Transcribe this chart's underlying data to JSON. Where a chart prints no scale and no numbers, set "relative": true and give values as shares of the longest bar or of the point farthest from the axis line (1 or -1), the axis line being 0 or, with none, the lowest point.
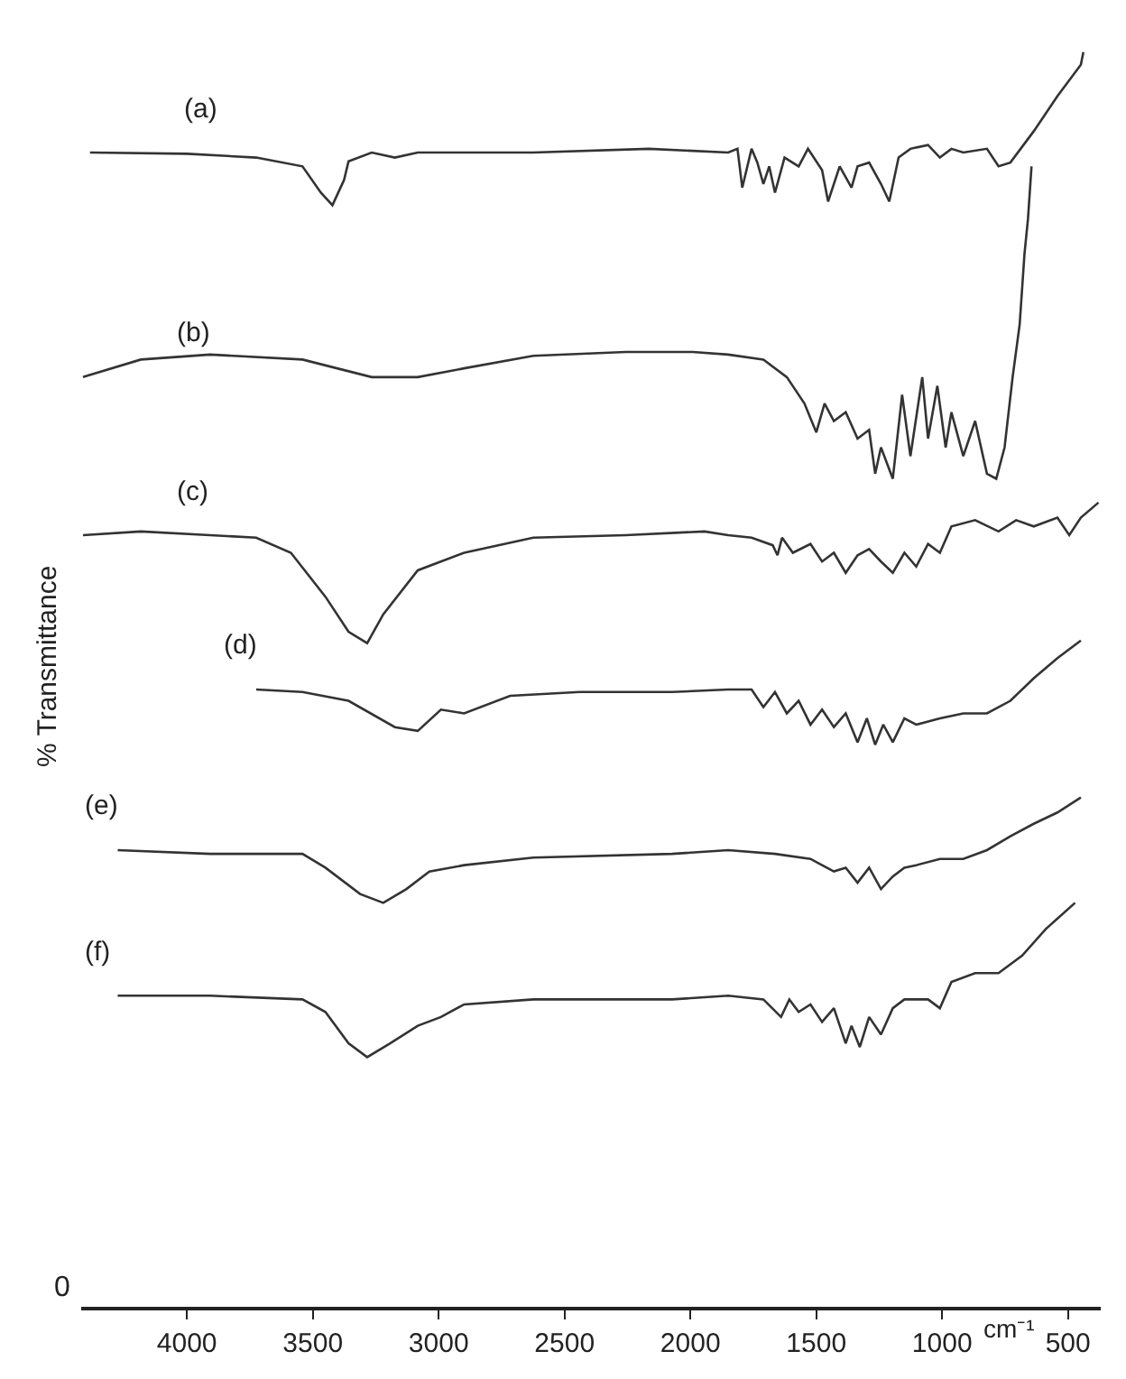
{
  "chart_data": {
    "type": "line",
    "relative": true,
    "ylabel": "% Transmittance",
    "xlabel": "cm⁻¹",
    "xlim": [
      4420,
      370
    ],
    "xticks": [
      4000,
      3500,
      3000,
      2500,
      2000,
      1500,
      1000,
      500
    ],
    "legend": false,
    "marker": "none",
    "line_style": "solid",
    "annotations": [
      "0"
    ],
    "series": [
      {
        "name": "(a)",
        "color": "#333333",
        "x": [
          4385,
          4000,
          3725,
          3541,
          3468,
          3422,
          3376,
          3358,
          3266,
          3174,
          3083,
          2945,
          2624,
          2165,
          1850,
          1813,
          1794,
          1757,
          1734,
          1710,
          1687,
          1664,
          1626,
          1570,
          1533,
          1477,
          1453,
          1407,
          1360,
          1336,
          1290,
          1243,
          1210,
          1173,
          1126,
          1056,
          1009,
          963,
          916,
          822,
          776,
          729,
          636,
          542,
          449,
          439
        ],
        "values": [
          0.92,
          0.919,
          0.916,
          0.909,
          0.888,
          0.878,
          0.898,
          0.913,
          0.92,
          0.916,
          0.92,
          0.92,
          0.92,
          0.923,
          0.92,
          0.923,
          0.892,
          0.923,
          0.912,
          0.895,
          0.909,
          0.888,
          0.916,
          0.909,
          0.923,
          0.906,
          0.881,
          0.909,
          0.892,
          0.909,
          0.912,
          0.895,
          0.881,
          0.916,
          0.923,
          0.926,
          0.916,
          0.923,
          0.92,
          0.923,
          0.909,
          0.912,
          0.937,
          0.965,
          0.99,
          1.0
        ]
      },
      {
        "name": "(b)",
        "color": "#333333",
        "x": [
          4413,
          4183,
          3908,
          3541,
          3266,
          3083,
          2899,
          2624,
          2257,
          1991,
          1850,
          1710,
          1617,
          1547,
          1500,
          1467,
          1430,
          1383,
          1336,
          1290,
          1266,
          1243,
          1196,
          1159,
          1126,
          1079,
          1056,
          1019,
          986,
          963,
          916,
          869,
          822,
          785,
          752,
          720,
          692,
          673,
          659,
          645
        ],
        "values": [
          0.741,
          0.755,
          0.759,
          0.755,
          0.741,
          0.741,
          0.748,
          0.758,
          0.761,
          0.761,
          0.759,
          0.755,
          0.741,
          0.72,
          0.697,
          0.72,
          0.706,
          0.713,
          0.692,
          0.699,
          0.664,
          0.685,
          0.66,
          0.727,
          0.678,
          0.741,
          0.692,
          0.734,
          0.685,
          0.713,
          0.678,
          0.706,
          0.664,
          0.66,
          0.685,
          0.741,
          0.783,
          0.839,
          0.867,
          0.909
        ]
      },
      {
        "name": "(c)",
        "color": "#333333",
        "x": [
          4413,
          4183,
          3908,
          3725,
          3587,
          3450,
          3358,
          3284,
          3220,
          3083,
          2899,
          2624,
          2257,
          1944,
          1850,
          1757,
          1673,
          1654,
          1636,
          1593,
          1523,
          1477,
          1430,
          1383,
          1336,
          1290,
          1243,
          1196,
          1150,
          1103,
          1056,
          1009,
          963,
          869,
          776,
          706,
          636,
          542,
          495,
          449,
          379
        ],
        "values": [
          0.615,
          0.618,
          0.615,
          0.613,
          0.601,
          0.566,
          0.538,
          0.529,
          0.552,
          0.587,
          0.601,
          0.613,
          0.615,
          0.618,
          0.615,
          0.613,
          0.607,
          0.599,
          0.613,
          0.601,
          0.608,
          0.594,
          0.601,
          0.585,
          0.599,
          0.604,
          0.594,
          0.585,
          0.601,
          0.59,
          0.608,
          0.601,
          0.622,
          0.627,
          0.618,
          0.627,
          0.622,
          0.629,
          0.615,
          0.629,
          0.641
        ]
      },
      {
        "name": "(d)",
        "color": "#333333",
        "x": [
          3725,
          3541,
          3358,
          3174,
          3083,
          2991,
          2899,
          2716,
          2440,
          2073,
          1850,
          1757,
          1710,
          1664,
          1617,
          1570,
          1523,
          1477,
          1430,
          1383,
          1336,
          1299,
          1266,
          1234,
          1196,
          1150,
          1103,
          1009,
          916,
          822,
          729,
          636,
          542,
          449
        ],
        "values": [
          0.492,
          0.49,
          0.483,
          0.462,
          0.459,
          0.476,
          0.473,
          0.487,
          0.49,
          0.49,
          0.492,
          0.492,
          0.478,
          0.49,
          0.473,
          0.483,
          0.464,
          0.476,
          0.462,
          0.473,
          0.45,
          0.469,
          0.448,
          0.464,
          0.45,
          0.469,
          0.464,
          0.469,
          0.473,
          0.473,
          0.483,
          0.501,
          0.517,
          0.531
        ]
      },
      {
        "name": "(e)",
        "color": "#333333",
        "x": [
          4275,
          3908,
          3541,
          3450,
          3312,
          3220,
          3128,
          3037,
          2899,
          2624,
          2073,
          1850,
          1664,
          1523,
          1477,
          1430,
          1383,
          1336,
          1290,
          1243,
          1196,
          1150,
          1103,
          1009,
          916,
          822,
          729,
          636,
          542,
          449
        ],
        "values": [
          0.364,
          0.361,
          0.361,
          0.35,
          0.329,
          0.322,
          0.333,
          0.347,
          0.352,
          0.358,
          0.361,
          0.364,
          0.361,
          0.357,
          0.352,
          0.347,
          0.35,
          0.338,
          0.35,
          0.333,
          0.343,
          0.35,
          0.352,
          0.357,
          0.357,
          0.364,
          0.375,
          0.385,
          0.394,
          0.406
        ]
      },
      {
        "name": "(f)",
        "color": "#333333",
        "x": [
          4275,
          3908,
          3541,
          3450,
          3358,
          3284,
          3193,
          3083,
          2991,
          2899,
          2624,
          2073,
          1850,
          1710,
          1640,
          1607,
          1570,
          1523,
          1477,
          1430,
          1383,
          1360,
          1327,
          1290,
          1243,
          1196,
          1150,
          1056,
          1009,
          963,
          869,
          776,
          682,
          589,
          472
        ],
        "values": [
          0.248,
          0.248,
          0.245,
          0.235,
          0.21,
          0.199,
          0.21,
          0.224,
          0.231,
          0.241,
          0.245,
          0.245,
          0.248,
          0.245,
          0.231,
          0.245,
          0.235,
          0.241,
          0.227,
          0.238,
          0.21,
          0.224,
          0.207,
          0.231,
          0.217,
          0.238,
          0.245,
          0.245,
          0.238,
          0.259,
          0.266,
          0.266,
          0.28,
          0.301,
          0.322
        ]
      }
    ]
  }
}
